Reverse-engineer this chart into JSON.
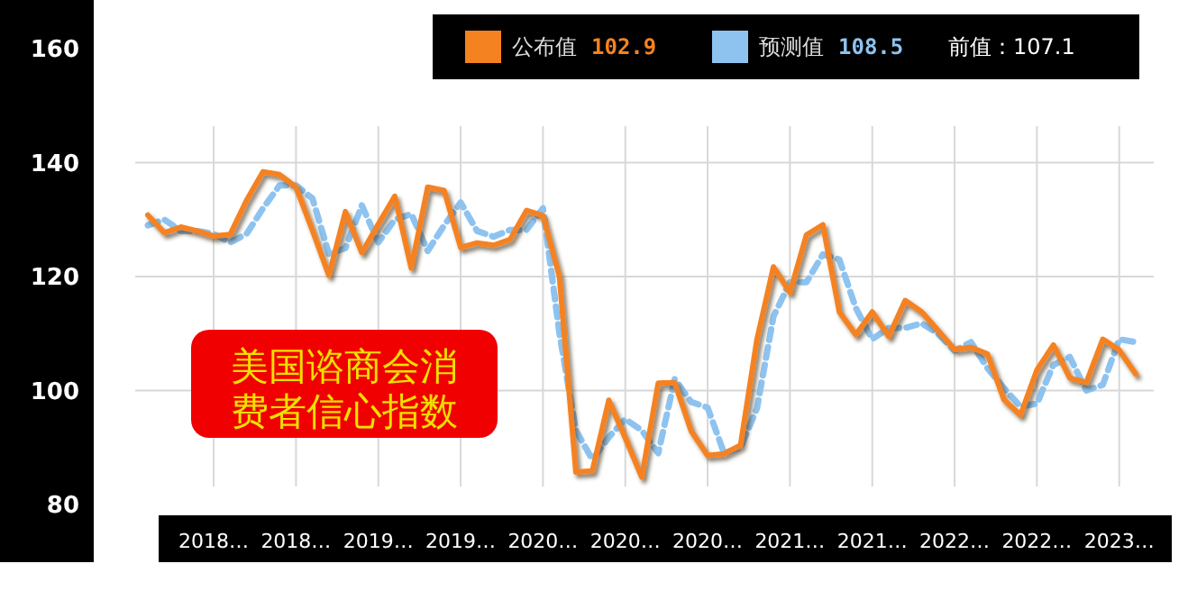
{
  "chart_data": {
    "type": "line",
    "title": "美国谘商会消费者信心指数",
    "categories": [
      null,
      null,
      null,
      null,
      "2018…",
      null,
      null,
      null,
      null,
      "2018…",
      null,
      null,
      null,
      null,
      "2019…",
      null,
      null,
      null,
      null,
      "2019…",
      null,
      null,
      null,
      null,
      "2020…",
      null,
      null,
      null,
      null,
      "2020…",
      null,
      null,
      null,
      null,
      "2020…",
      null,
      null,
      null,
      null,
      "2021…",
      null,
      null,
      null,
      null,
      "2021…",
      null,
      null,
      null,
      null,
      "2022…",
      null,
      null,
      null,
      null,
      "2022…",
      null,
      null,
      null,
      null,
      "2023…",
      null
    ],
    "series": [
      {
        "name": "公布值",
        "color": "#f58220",
        "line_style": "solid",
        "values": [
          130.8,
          127.7,
          128.7,
          128.0,
          127.1,
          127.4,
          133.4,
          138.4,
          137.9,
          135.7,
          128.1,
          120.2,
          131.4,
          124.2,
          129.2,
          134.1,
          121.5,
          135.7,
          135.1,
          125.1,
          125.9,
          125.5,
          126.5,
          131.6,
          130.7,
          120.0,
          85.7,
          85.9,
          98.3,
          91.7,
          84.8,
          101.3,
          101.4,
          92.9,
          88.6,
          88.9,
          90.4,
          109.0,
          121.7,
          117.2,
          127.3,
          129.1,
          113.8,
          109.8,
          113.8,
          109.5,
          115.8,
          113.8,
          110.5,
          107.2,
          107.6,
          106.4,
          98.4,
          95.7,
          103.6,
          108.0,
          102.2,
          101.4,
          109.0,
          107.1,
          102.9
        ]
      },
      {
        "name": "预测值",
        "color": "#8ec3f0",
        "line_style": "dashed",
        "values": [
          129.0,
          130.0,
          128.0,
          128.0,
          127.5,
          126.0,
          127.5,
          132.0,
          136.0,
          136.0,
          133.7,
          124.0,
          125.0,
          132.5,
          126.0,
          130.0,
          131.0,
          124.5,
          129.0,
          133.0,
          128.0,
          127.0,
          128.2,
          128.2,
          132.0,
          110.0,
          93.0,
          87.9,
          91.8,
          95.0,
          93.0,
          89.0,
          102.0,
          98.0,
          97.0,
          89.0,
          90.0,
          96.9,
          113.0,
          119.0,
          119.0,
          123.9,
          123.0,
          114.5,
          109.0,
          111.0,
          111.0,
          111.8,
          110.0,
          107.0,
          108.5,
          103.9,
          100.4,
          97.2,
          97.7,
          104.5,
          105.9,
          100.0,
          101.0,
          109.0,
          108.5
        ]
      }
    ],
    "annotations": [
      "102.9",
      "108.5",
      "前值：107.1"
    ],
    "ylim": [
      80,
      160
    ],
    "yticks": [
      80,
      100,
      120,
      140,
      160
    ],
    "grid": true,
    "legend": "top right"
  }
}
